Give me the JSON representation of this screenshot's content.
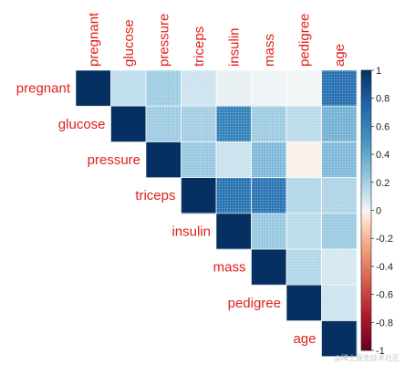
{
  "chart_data": {
    "type": "heatmap",
    "variables": [
      "pregnant",
      "glucose",
      "pressure",
      "triceps",
      "insulin",
      "mass",
      "pedigree",
      "age"
    ],
    "matrix_shape": "upper-triangle",
    "cell_style": "full",
    "correlations": [
      [
        1.0,
        0.13,
        0.21,
        0.09,
        0.03,
        0.02,
        0.01,
        0.68
      ],
      [
        null,
        1.0,
        0.21,
        0.2,
        0.58,
        0.21,
        0.14,
        0.34
      ],
      [
        null,
        null,
        1.0,
        0.23,
        0.1,
        0.3,
        -0.02,
        0.3
      ],
      [
        null,
        null,
        null,
        1.0,
        0.66,
        0.65,
        0.16,
        0.17
      ],
      [
        null,
        null,
        null,
        null,
        1.0,
        0.23,
        0.14,
        0.22
      ],
      [
        null,
        null,
        null,
        null,
        null,
        1.0,
        0.16,
        0.07
      ],
      [
        null,
        null,
        null,
        null,
        null,
        null,
        1.0,
        0.09
      ],
      [
        null,
        null,
        null,
        null,
        null,
        null,
        null,
        1.0
      ]
    ],
    "colorbar": {
      "range": [
        -1,
        1
      ],
      "ticks": [
        "-1",
        "-0.8",
        "-0.6",
        "-0.4",
        "-0.2",
        "0",
        "0.2",
        "0.4",
        "0.6",
        "0.8",
        "1"
      ],
      "low_color": "#67001F",
      "mid_color": "#F7F7F7",
      "high_color": "#053061"
    },
    "label_color": "#e0201c"
  },
  "watermark": "@稀土掘金技术社区"
}
